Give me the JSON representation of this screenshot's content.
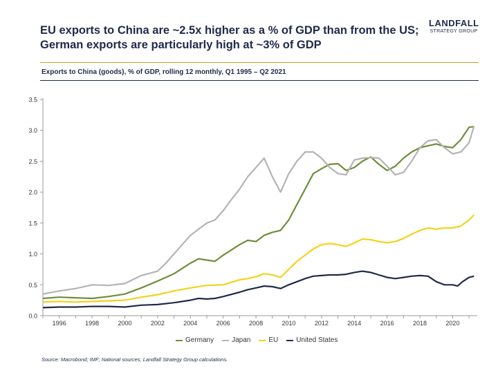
{
  "header": {
    "title_line1": "EU exports to China are ~2.5x higher as a % of GDP than from the US;",
    "title_line2": "German exports are particularly high at ~3% of GDP",
    "brand_name": "LANDFALL",
    "brand_sub": "STRATEGY GROUP"
  },
  "footer": {
    "source": "Source: Macrobond;  IMF; National sources; Landfall Strategy Group calculations."
  },
  "chart_data": {
    "type": "line",
    "title": "Exports to China (goods), % of GDP, rolling 12 monthly, Q1 1995 – Q2 2021",
    "xlim": [
      1995,
      2021.5
    ],
    "ylim": [
      0,
      3.5
    ],
    "x_ticks": [
      "1996",
      "1998",
      "2000",
      "2002",
      "2004",
      "2006",
      "2008",
      "2010",
      "2012",
      "2014",
      "2016",
      "2018",
      "2020"
    ],
    "y_ticks": [
      "0.0",
      "0.5",
      "1.0",
      "1.5",
      "2.0",
      "2.5",
      "3.0",
      "3.5"
    ],
    "legend_position": "bottom",
    "series": [
      {
        "name": "Germany",
        "color": "#6e8c3a",
        "points": [
          [
            1995,
            0.28
          ],
          [
            1996,
            0.3
          ],
          [
            1997,
            0.29
          ],
          [
            1998,
            0.28
          ],
          [
            1999,
            0.31
          ],
          [
            2000,
            0.35
          ],
          [
            2001,
            0.45
          ],
          [
            2002,
            0.56
          ],
          [
            2003,
            0.68
          ],
          [
            2004,
            0.85
          ],
          [
            2004.5,
            0.92
          ],
          [
            2005,
            0.9
          ],
          [
            2005.5,
            0.88
          ],
          [
            2006,
            0.98
          ],
          [
            2007,
            1.15
          ],
          [
            2007.5,
            1.22
          ],
          [
            2008,
            1.2
          ],
          [
            2008.5,
            1.3
          ],
          [
            2009,
            1.35
          ],
          [
            2009.5,
            1.38
          ],
          [
            2010,
            1.55
          ],
          [
            2010.5,
            1.8
          ],
          [
            2011,
            2.05
          ],
          [
            2011.5,
            2.3
          ],
          [
            2012,
            2.38
          ],
          [
            2012.5,
            2.45
          ],
          [
            2013,
            2.46
          ],
          [
            2013.5,
            2.35
          ],
          [
            2014,
            2.4
          ],
          [
            2014.5,
            2.5
          ],
          [
            2015,
            2.57
          ],
          [
            2015.5,
            2.45
          ],
          [
            2016,
            2.35
          ],
          [
            2016.5,
            2.42
          ],
          [
            2017,
            2.55
          ],
          [
            2017.5,
            2.65
          ],
          [
            2018,
            2.72
          ],
          [
            2018.5,
            2.75
          ],
          [
            2019,
            2.78
          ],
          [
            2019.5,
            2.74
          ],
          [
            2020,
            2.72
          ],
          [
            2020.5,
            2.85
          ],
          [
            2021,
            3.05
          ],
          [
            2021.3,
            3.06
          ]
        ]
      },
      {
        "name": "Japan",
        "color": "#b3b3b3",
        "points": [
          [
            1995,
            0.35
          ],
          [
            1996,
            0.4
          ],
          [
            1997,
            0.44
          ],
          [
            1998,
            0.5
          ],
          [
            1999,
            0.49
          ],
          [
            2000,
            0.52
          ],
          [
            2001,
            0.65
          ],
          [
            2002,
            0.72
          ],
          [
            2002.5,
            0.85
          ],
          [
            2003,
            1.0
          ],
          [
            2003.5,
            1.15
          ],
          [
            2004,
            1.3
          ],
          [
            2004.5,
            1.4
          ],
          [
            2005,
            1.5
          ],
          [
            2005.5,
            1.55
          ],
          [
            2006,
            1.7
          ],
          [
            2006.5,
            1.88
          ],
          [
            2007,
            2.05
          ],
          [
            2007.5,
            2.25
          ],
          [
            2008,
            2.4
          ],
          [
            2008.5,
            2.55
          ],
          [
            2009,
            2.25
          ],
          [
            2009.5,
            2.0
          ],
          [
            2010,
            2.3
          ],
          [
            2010.5,
            2.5
          ],
          [
            2011,
            2.65
          ],
          [
            2011.5,
            2.65
          ],
          [
            2012,
            2.55
          ],
          [
            2012.5,
            2.4
          ],
          [
            2013,
            2.3
          ],
          [
            2013.5,
            2.28
          ],
          [
            2014,
            2.52
          ],
          [
            2014.5,
            2.55
          ],
          [
            2015,
            2.56
          ],
          [
            2015.5,
            2.55
          ],
          [
            2016,
            2.42
          ],
          [
            2016.5,
            2.28
          ],
          [
            2017,
            2.32
          ],
          [
            2017.5,
            2.5
          ],
          [
            2018,
            2.72
          ],
          [
            2018.5,
            2.83
          ],
          [
            2019,
            2.85
          ],
          [
            2019.5,
            2.72
          ],
          [
            2020,
            2.62
          ],
          [
            2020.5,
            2.65
          ],
          [
            2021,
            2.8
          ],
          [
            2021.3,
            3.07
          ]
        ]
      },
      {
        "name": "EU",
        "color": "#f5d11b",
        "points": [
          [
            1995,
            0.22
          ],
          [
            1996,
            0.23
          ],
          [
            1997,
            0.22
          ],
          [
            1998,
            0.23
          ],
          [
            1999,
            0.24
          ],
          [
            2000,
            0.25
          ],
          [
            2001,
            0.3
          ],
          [
            2002,
            0.34
          ],
          [
            2003,
            0.4
          ],
          [
            2004,
            0.45
          ],
          [
            2005,
            0.49
          ],
          [
            2006,
            0.5
          ],
          [
            2007,
            0.58
          ],
          [
            2007.5,
            0.6
          ],
          [
            2008,
            0.63
          ],
          [
            2008.5,
            0.68
          ],
          [
            2009,
            0.66
          ],
          [
            2009.5,
            0.62
          ],
          [
            2010,
            0.75
          ],
          [
            2010.5,
            0.88
          ],
          [
            2011,
            0.98
          ],
          [
            2011.5,
            1.08
          ],
          [
            2012,
            1.15
          ],
          [
            2012.5,
            1.17
          ],
          [
            2013,
            1.15
          ],
          [
            2013.5,
            1.12
          ],
          [
            2014,
            1.18
          ],
          [
            2014.5,
            1.24
          ],
          [
            2015,
            1.23
          ],
          [
            2015.5,
            1.2
          ],
          [
            2016,
            1.18
          ],
          [
            2016.5,
            1.2
          ],
          [
            2017,
            1.25
          ],
          [
            2017.5,
            1.32
          ],
          [
            2018,
            1.38
          ],
          [
            2018.5,
            1.42
          ],
          [
            2019,
            1.4
          ],
          [
            2019.5,
            1.42
          ],
          [
            2020,
            1.42
          ],
          [
            2020.5,
            1.45
          ],
          [
            2021,
            1.55
          ],
          [
            2021.3,
            1.63
          ]
        ]
      },
      {
        "name": "United States",
        "color": "#1e2a4a",
        "points": [
          [
            1995,
            0.13
          ],
          [
            1996,
            0.14
          ],
          [
            1997,
            0.14
          ],
          [
            1998,
            0.15
          ],
          [
            1999,
            0.15
          ],
          [
            2000,
            0.14
          ],
          [
            2001,
            0.17
          ],
          [
            2002,
            0.18
          ],
          [
            2003,
            0.21
          ],
          [
            2004,
            0.25
          ],
          [
            2004.5,
            0.28
          ],
          [
            2005,
            0.27
          ],
          [
            2005.5,
            0.28
          ],
          [
            2006,
            0.31
          ],
          [
            2007,
            0.38
          ],
          [
            2007.5,
            0.42
          ],
          [
            2008,
            0.45
          ],
          [
            2008.5,
            0.48
          ],
          [
            2009,
            0.47
          ],
          [
            2009.5,
            0.44
          ],
          [
            2010,
            0.5
          ],
          [
            2010.5,
            0.55
          ],
          [
            2011,
            0.6
          ],
          [
            2011.5,
            0.64
          ],
          [
            2012,
            0.65
          ],
          [
            2012.5,
            0.66
          ],
          [
            2013,
            0.66
          ],
          [
            2013.5,
            0.67
          ],
          [
            2014,
            0.7
          ],
          [
            2014.5,
            0.72
          ],
          [
            2015,
            0.7
          ],
          [
            2015.5,
            0.66
          ],
          [
            2016,
            0.62
          ],
          [
            2016.5,
            0.6
          ],
          [
            2017,
            0.62
          ],
          [
            2017.5,
            0.64
          ],
          [
            2018,
            0.65
          ],
          [
            2018.5,
            0.64
          ],
          [
            2019,
            0.55
          ],
          [
            2019.5,
            0.5
          ],
          [
            2020,
            0.5
          ],
          [
            2020.3,
            0.48
          ],
          [
            2020.6,
            0.55
          ],
          [
            2021,
            0.62
          ],
          [
            2021.3,
            0.64
          ]
        ]
      }
    ]
  }
}
